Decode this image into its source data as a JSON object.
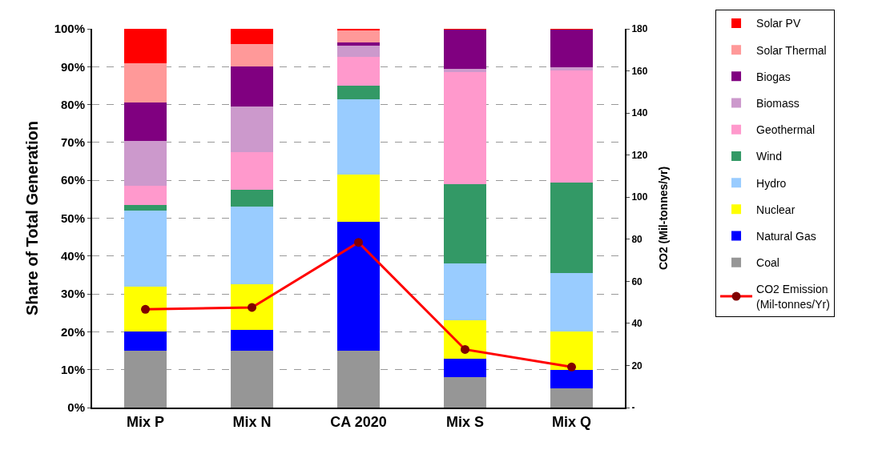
{
  "chart_data": {
    "type": "bar",
    "stacked": true,
    "ylabel": "Share of Total Generation",
    "y2label": "CO2 (Mil-tonnes/yr)",
    "categories": [
      "Mix P",
      "Mix N",
      "CA 2020",
      "Mix S",
      "Mix Q"
    ],
    "ylim": [
      0,
      100
    ],
    "yticks": [
      {
        "value": 0,
        "label": "0%"
      },
      {
        "value": 10,
        "label": "10%"
      },
      {
        "value": 20,
        "label": "20%"
      },
      {
        "value": 30,
        "label": "30%"
      },
      {
        "value": 40,
        "label": "40%"
      },
      {
        "value": 50,
        "label": "50%"
      },
      {
        "value": 60,
        "label": "60%"
      },
      {
        "value": 70,
        "label": "70%"
      },
      {
        "value": 80,
        "label": "80%"
      },
      {
        "value": 90,
        "label": "90%"
      },
      {
        "value": 100,
        "label": "100%"
      }
    ],
    "y2lim": [
      0,
      180
    ],
    "y2ticks": [
      {
        "value": 0,
        "label": "-"
      },
      20,
      40,
      60,
      80,
      100,
      120,
      140,
      160,
      180
    ],
    "grid": "y",
    "legend": "right",
    "series": [
      {
        "name": "Coal",
        "color": "#969696",
        "values": [
          15,
          15,
          15,
          8,
          5
        ]
      },
      {
        "name": "Natural Gas",
        "color": "#0000ff",
        "values": [
          5,
          5.5,
          34,
          5,
          5
        ]
      },
      {
        "name": "Nuclear",
        "color": "#ffff00",
        "values": [
          12,
          12,
          12.5,
          10,
          10
        ]
      },
      {
        "name": "Hydro",
        "color": "#99ccff",
        "values": [
          20,
          20.5,
          20,
          15,
          15.5
        ]
      },
      {
        "name": "Wind",
        "color": "#339966",
        "values": [
          1.5,
          4.5,
          3.5,
          21,
          24
        ]
      },
      {
        "name": "Geothermal",
        "color": "#ff99cc",
        "values": [
          5,
          10,
          7.5,
          29.5,
          29.5
        ]
      },
      {
        "name": "Biomass",
        "color": "#cc99cc",
        "values": [
          12,
          12,
          3,
          1,
          0.8
        ]
      },
      {
        "name": "Biogas",
        "color": "#800080",
        "values": [
          10,
          10.5,
          1,
          10.3,
          10
        ]
      },
      {
        "name": "Solar Thermal",
        "color": "#ff9999",
        "values": [
          10.5,
          6,
          3.2,
          0,
          0
        ]
      },
      {
        "name": "Solar PV",
        "color": "#ff0000",
        "values": [
          9,
          4,
          0.3,
          0.2,
          0.2
        ]
      },
      {
        "name": "CO2 Emission (Mil-tonnes/Yr)",
        "type": "line",
        "axis": "y2",
        "color": "#ff0000",
        "marker": "circle",
        "colors": [
          "#800000",
          "#800000",
          "#800000",
          "#800000",
          "#800000"
        ],
        "values": [
          46.7,
          47.6,
          78.5,
          27.6,
          19.3
        ]
      }
    ]
  }
}
